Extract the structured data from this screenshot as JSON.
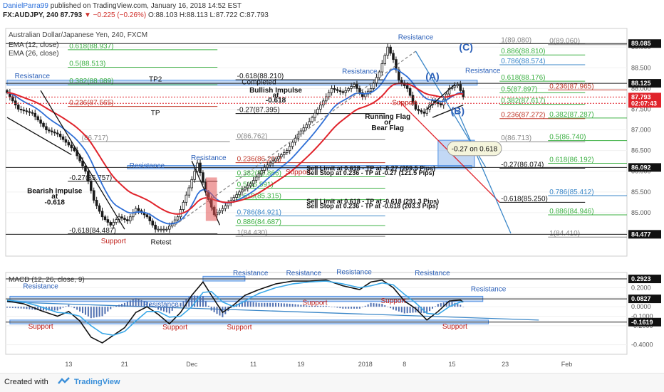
{
  "header": {
    "line1_author": "DanielParra99",
    "line1_text": "published on TradingView.com, January 16, 2018 14:52 EST",
    "symbol": "FX:AUDJPY, 240",
    "last": "87.793",
    "change": "−0.225 (−0.26%)",
    "ohlc": "O:88.103 H:88.113 L:87.722 C:87.793"
  },
  "footer": {
    "created": "Created with",
    "brand": "TradingView"
  },
  "colors": {
    "candle": "#1b1b1b",
    "ema12": "#2f6fd6",
    "ema26": "#e0232b",
    "zone": "#4f8fe3",
    "fib_green": "#3cb043",
    "fib_red": "#c0392b",
    "fib_blue": "#3b87c8",
    "macd": "#111111",
    "signal": "#3aa8e8",
    "hist": "#4f6fb0"
  },
  "chart_data": [
    {
      "type": "candlestick",
      "title": "Australian Dollar/Japanese Yen, 240, FXCM",
      "legend": [
        "EMA (12, close)",
        "EMA (26, close)"
      ],
      "legend_placement": "top-left",
      "ylim": [
        83.95,
        89.45
      ],
      "yticks": [
        "89.000",
        "88.500",
        "88.000",
        "87.500",
        "87.000",
        "86.500",
        "86.000",
        "85.500",
        "85.000",
        "84.500"
      ],
      "x_ticks": [
        {
          "label": "13",
          "i": 22
        },
        {
          "label": "21",
          "i": 42
        },
        {
          "label": "Dec",
          "i": 66
        },
        {
          "label": "11",
          "i": 88
        },
        {
          "label": "19",
          "i": 105
        },
        {
          "label": "2018",
          "i": 128
        },
        {
          "label": "8",
          "i": 142
        },
        {
          "label": "15",
          "i": 159
        },
        {
          "label": "23",
          "i": 178
        },
        {
          "label": "Feb",
          "i": 200
        }
      ],
      "x_count": 222,
      "close_anchors": [
        [
          0,
          87.9
        ],
        [
          4,
          87.5
        ],
        [
          9,
          87.4
        ],
        [
          14,
          87.0
        ],
        [
          18,
          86.9
        ],
        [
          24,
          86.5
        ],
        [
          28,
          86.0
        ],
        [
          31,
          85.3
        ],
        [
          34,
          84.9
        ],
        [
          37,
          84.7
        ],
        [
          40,
          84.9
        ],
        [
          43,
          84.8
        ],
        [
          46,
          85.1
        ],
        [
          50,
          84.9
        ],
        [
          53,
          84.6
        ],
        [
          57,
          84.6
        ],
        [
          61,
          84.9
        ],
        [
          65,
          85.6
        ],
        [
          68,
          86.2
        ],
        [
          71,
          85.5
        ],
        [
          74,
          84.95
        ],
        [
          77,
          85.1
        ],
        [
          80,
          85.3
        ],
        [
          83,
          85.5
        ],
        [
          87,
          85.7
        ],
        [
          92,
          86.1
        ],
        [
          96,
          86.3
        ],
        [
          100,
          86.5
        ],
        [
          104,
          86.9
        ],
        [
          108,
          87.2
        ],
        [
          112,
          87.6
        ],
        [
          116,
          88.0
        ],
        [
          120,
          87.9
        ],
        [
          124,
          88.1
        ],
        [
          127,
          87.8
        ],
        [
          130,
          88.0
        ],
        [
          133,
          88.4
        ],
        [
          136,
          89.0
        ],
        [
          138,
          88.7
        ],
        [
          140,
          88.2
        ],
        [
          143,
          88.0
        ],
        [
          146,
          87.5
        ],
        [
          149,
          87.4
        ],
        [
          152,
          87.7
        ],
        [
          155,
          87.6
        ],
        [
          158,
          88.0
        ],
        [
          161,
          88.1
        ],
        [
          163,
          87.8
        ]
      ],
      "price_labels": [
        {
          "text": "89.085",
          "y": 89.085,
          "style": "dark"
        },
        {
          "text": "88.125",
          "y": 88.125,
          "style": "dark"
        },
        {
          "text": "87.793",
          "y": 87.793,
          "style": "red"
        },
        {
          "text": "02:07:43",
          "y": 87.64,
          "style": "red"
        },
        {
          "text": "86.092",
          "y": 86.092,
          "style": "dark"
        },
        {
          "text": "84.477",
          "y": 84.477,
          "style": "dark"
        }
      ],
      "fib_right": [
        {
          "text": "1(89.080)",
          "y": 89.08,
          "c": "gray",
          "x": 0.795
        },
        {
          "text": "0(89.060)",
          "y": 89.06,
          "c": "gray",
          "x": 0.873
        },
        {
          "text": "0.886(88.810)",
          "y": 88.81,
          "c": "green",
          "x": 0.795
        },
        {
          "text": "0.786(88.574)",
          "y": 88.574,
          "c": "blue",
          "x": 0.795
        },
        {
          "text": "0.618(88.176)",
          "y": 88.176,
          "c": "green",
          "x": 0.795
        },
        {
          "text": "0.5(87.897)",
          "y": 87.897,
          "c": "green",
          "x": 0.795
        },
        {
          "text": "0.236(87.965)",
          "y": 87.965,
          "c": "red",
          "x": 0.873
        },
        {
          "text": "0.382(87.617)",
          "y": 87.617,
          "c": "green",
          "x": 0.795
        },
        {
          "text": "0.236(87.272)",
          "y": 87.272,
          "c": "red",
          "x": 0.795
        },
        {
          "text": "0.382(87.287)",
          "y": 87.287,
          "c": "green",
          "x": 0.873
        },
        {
          "text": "0(86.713)",
          "y": 86.713,
          "c": "gray",
          "x": 0.795
        },
        {
          "text": "0.5(86.740)",
          "y": 86.74,
          "c": "green",
          "x": 0.873
        },
        {
          "text": "0.618(86.192)",
          "y": 86.192,
          "c": "green",
          "x": 0.873
        },
        {
          "text": "-0.27(86.074)",
          "y": 86.074,
          "c": "black",
          "x": 0.795
        },
        {
          "text": "0.786(85.412)",
          "y": 85.412,
          "c": "blue",
          "x": 0.873
        },
        {
          "text": "-0.618(85.250)",
          "y": 85.25,
          "c": "black",
          "x": 0.795
        },
        {
          "text": "0.886(84.946)",
          "y": 84.946,
          "c": "green",
          "x": 0.873
        },
        {
          "text": "1(84.410)",
          "y": 84.41,
          "c": "gray",
          "x": 0.873
        }
      ],
      "fib_left": [
        {
          "text": "0.618(88.937)",
          "y": 88.937,
          "c": "green",
          "x": 0.1
        },
        {
          "text": "0.5(88.513)",
          "y": 88.513,
          "c": "green",
          "x": 0.1
        },
        {
          "text": "0.382(88.089)",
          "y": 88.089,
          "c": "green",
          "x": 0.1
        },
        {
          "text": "0.236(87.565)",
          "y": 87.565,
          "c": "red",
          "x": 0.1
        },
        {
          "text": "-0.618(88.210)",
          "y": 88.21,
          "c": "black",
          "x": 0.37
        },
        {
          "text": "-0.27(87.395)",
          "y": 87.395,
          "c": "black",
          "x": 0.37
        },
        {
          "text": "0(86.762)",
          "y": 86.762,
          "c": "gray",
          "x": 0.37
        },
        {
          "text": "0.236(86.209)",
          "y": 86.209,
          "c": "red",
          "x": 0.37
        },
        {
          "text": "0.382(85.866)",
          "y": 85.866,
          "c": "green",
          "x": 0.37
        },
        {
          "text": "0.5(85.591)",
          "y": 85.591,
          "c": "green",
          "x": 0.37
        },
        {
          "text": "0.618(85.315)",
          "y": 85.315,
          "c": "green",
          "x": 0.37
        },
        {
          "text": "0.786(84.921)",
          "y": 84.921,
          "c": "blue",
          "x": 0.37
        },
        {
          "text": "0.886(84.687)",
          "y": 84.687,
          "c": "green",
          "x": 0.37
        },
        {
          "text": "1(84.430)",
          "y": 84.43,
          "c": "gray",
          "x": 0.37
        },
        {
          "text": "(86.717)",
          "y": 86.717,
          "c": "gray",
          "x": 0.12
        },
        {
          "text": "-0.27(85.757)",
          "y": 85.757,
          "c": "black",
          "x": 0.1
        },
        {
          "text": "-0.618(84.487)",
          "y": 84.487,
          "c": "black",
          "x": 0.1
        }
      ],
      "annotations": [
        {
          "text": "Resistance",
          "c": "blue",
          "i": 9,
          "y": 88.25
        },
        {
          "text": "Resistance",
          "c": "blue",
          "i": 50,
          "y": 86.08
        },
        {
          "text": "Resistance",
          "c": "blue",
          "i": 72,
          "y": 86.27
        },
        {
          "text": "Resistance",
          "c": "blue",
          "i": 126,
          "y": 88.36
        },
        {
          "text": "Resistance",
          "c": "blue",
          "i": 146,
          "y": 89.18
        },
        {
          "text": "Resistance",
          "c": "blue",
          "i": 170,
          "y": 88.38
        },
        {
          "text": "Support",
          "c": "red",
          "i": 38,
          "y": 84.26
        },
        {
          "text": "Support",
          "c": "red",
          "i": 104,
          "y": 85.93
        },
        {
          "text": "Support",
          "c": "red",
          "i": 142,
          "y": 87.6
        },
        {
          "text": "Retest",
          "c": "black",
          "i": 55,
          "y": 84.23
        },
        {
          "text": "TP2",
          "c": "black",
          "i": 53,
          "y": 88.17
        },
        {
          "text": "TP",
          "c": "black",
          "i": 53,
          "y": 87.35
        },
        {
          "text": "Completed",
          "c": "black",
          "i": 90,
          "y": 88.1
        },
        {
          "text": "Bullish Impulse",
          "c": "black",
          "i": 96,
          "y": 87.9,
          "bold": true
        },
        {
          "text": "at",
          "c": "black",
          "i": 96,
          "y": 87.78,
          "bold": true
        },
        {
          "text": "-0.618",
          "c": "black",
          "i": 96,
          "y": 87.66,
          "bold": true
        },
        {
          "text": "Running Flag",
          "c": "black",
          "i": 136,
          "y": 87.27,
          "bold": true
        },
        {
          "text": "or",
          "c": "black",
          "i": 136,
          "y": 87.13,
          "bold": true
        },
        {
          "text": "Bear Flag",
          "c": "black",
          "i": 136,
          "y": 86.99,
          "bold": true
        },
        {
          "text": "Bearish Impulse",
          "c": "black",
          "i": 17,
          "y": 85.47,
          "bold": true
        },
        {
          "text": "at",
          "c": "black",
          "i": 17,
          "y": 85.34,
          "bold": true
        },
        {
          "text": "-0.618",
          "c": "black",
          "i": 17,
          "y": 85.2,
          "bold": true
        },
        {
          "text": "(A)",
          "c": "blue",
          "i": 152,
          "y": 88.21,
          "big": true
        },
        {
          "text": "(B)",
          "c": "blue",
          "i": 161,
          "y": 87.38,
          "big": true
        },
        {
          "text": "(C)",
          "c": "blue",
          "i": 164,
          "y": 88.92,
          "big": true
        }
      ],
      "sell_notes": [
        "Sell Limit at 0.618 - TP at -0.27 (209.5 Pips)",
        "Sell Stop at  0.236 - TP at -0.27 (121.5 Pips)",
        "Sell Limit at 0.618 - TP at -0.618 (291.3 Pips)",
        "Sell Stop at  0.236 - TP at -0.618 (203.3 Pips)"
      ],
      "callout": "-0.27 on 0.618"
    },
    {
      "type": "line",
      "title": "MACD (12, 26, close, 9)",
      "ylim": [
        -0.5,
        0.36
      ],
      "yticks": [
        "0.2000",
        "0.1000",
        "0.0000",
        "-0.1000",
        "-0.2000",
        "-0.4000"
      ],
      "ytick_values": [
        0.2,
        0.1,
        0.0,
        -0.1,
        -0.2,
        -0.4
      ],
      "price_labels": [
        {
          "text": "0.2923",
          "y": 0.2923
        },
        {
          "text": "0.0827",
          "y": 0.0827
        },
        {
          "text": "-0.1619",
          "y": -0.1619
        }
      ],
      "macd_anchors": [
        [
          0,
          0.06
        ],
        [
          6,
          0.03
        ],
        [
          12,
          -0.04
        ],
        [
          18,
          -0.1
        ],
        [
          22,
          -0.05
        ],
        [
          26,
          -0.15
        ],
        [
          30,
          -0.32
        ],
        [
          34,
          -0.38
        ],
        [
          38,
          -0.3
        ],
        [
          42,
          -0.22
        ],
        [
          46,
          -0.06
        ],
        [
          50,
          0.0
        ],
        [
          54,
          -0.08
        ],
        [
          58,
          -0.18
        ],
        [
          62,
          -0.06
        ],
        [
          66,
          0.12
        ],
        [
          70,
          0.26
        ],
        [
          73,
          0.12
        ],
        [
          77,
          -0.06
        ],
        [
          81,
          0.02
        ],
        [
          85,
          0.12
        ],
        [
          90,
          0.18
        ],
        [
          96,
          0.24
        ],
        [
          102,
          0.27
        ],
        [
          108,
          0.27
        ],
        [
          114,
          0.28
        ],
        [
          120,
          0.22
        ],
        [
          126,
          0.18
        ],
        [
          130,
          0.26
        ],
        [
          134,
          0.28
        ],
        [
          138,
          0.2
        ],
        [
          142,
          0.06
        ],
        [
          146,
          -0.02
        ],
        [
          150,
          -0.14
        ],
        [
          154,
          -0.05
        ],
        [
          158,
          0.06
        ],
        [
          162,
          0.07
        ],
        [
          163,
          0.05
        ]
      ],
      "signal_anchors": [
        [
          0,
          0.07
        ],
        [
          6,
          0.05
        ],
        [
          12,
          0.0
        ],
        [
          18,
          -0.06
        ],
        [
          22,
          -0.07
        ],
        [
          26,
          -0.1
        ],
        [
          30,
          -0.2
        ],
        [
          34,
          -0.28
        ],
        [
          38,
          -0.3
        ],
        [
          42,
          -0.26
        ],
        [
          46,
          -0.15
        ],
        [
          50,
          -0.05
        ],
        [
          54,
          -0.05
        ],
        [
          58,
          -0.11
        ],
        [
          62,
          -0.1
        ],
        [
          66,
          0.0
        ],
        [
          70,
          0.15
        ],
        [
          73,
          0.16
        ],
        [
          77,
          0.05
        ],
        [
          81,
          0.0
        ],
        [
          85,
          0.06
        ],
        [
          90,
          0.14
        ],
        [
          96,
          0.2
        ],
        [
          102,
          0.24
        ],
        [
          108,
          0.26
        ],
        [
          114,
          0.27
        ],
        [
          120,
          0.24
        ],
        [
          126,
          0.2
        ],
        [
          130,
          0.22
        ],
        [
          134,
          0.25
        ],
        [
          138,
          0.23
        ],
        [
          142,
          0.13
        ],
        [
          146,
          0.04
        ],
        [
          150,
          -0.07
        ],
        [
          154,
          -0.08
        ],
        [
          158,
          0.0
        ],
        [
          162,
          0.05
        ],
        [
          163,
          0.05
        ]
      ],
      "annotations": [
        {
          "text": "Resistance",
          "c": "blue",
          "i": 12,
          "y": 0.19
        },
        {
          "text": "Resistance",
          "c": "blue",
          "i": 55,
          "y": 0.0
        },
        {
          "text": "Resistance",
          "c": "blue",
          "i": 87,
          "y": 0.33
        },
        {
          "text": "Resistance",
          "c": "blue",
          "i": 106,
          "y": 0.33
        },
        {
          "text": "Resistance",
          "c": "blue",
          "i": 124,
          "y": 0.34
        },
        {
          "text": "Resistance",
          "c": "blue",
          "i": 152,
          "y": 0.33
        },
        {
          "text": "Resistance",
          "c": "blue",
          "i": 172,
          "y": 0.16
        },
        {
          "text": "Support",
          "c": "red",
          "i": 12,
          "y": -0.23
        },
        {
          "text": "Support",
          "c": "red",
          "i": 60,
          "y": -0.24
        },
        {
          "text": "Support",
          "c": "red",
          "i": 83,
          "y": -0.24
        },
        {
          "text": "Support",
          "c": "red",
          "i": 110,
          "y": 0.02
        },
        {
          "text": "Support",
          "c": "red",
          "i": 138,
          "y": 0.04
        },
        {
          "text": "Support",
          "c": "red",
          "i": 160,
          "y": -0.23
        }
      ]
    }
  ]
}
